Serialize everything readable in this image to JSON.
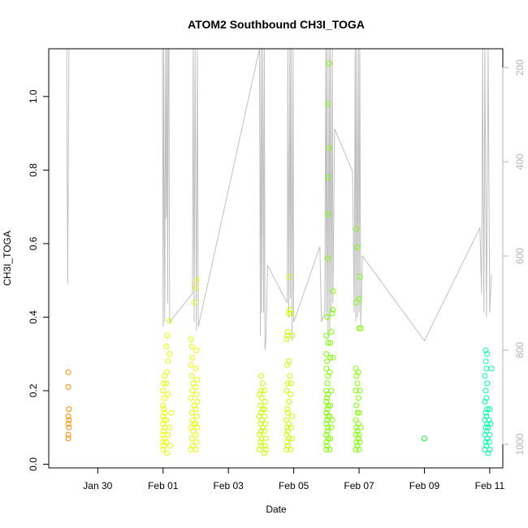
{
  "chart_data": {
    "type": "scatter",
    "title": "ATOM2 Southbound CH3I_TOGA",
    "xlabel": "Date",
    "ylabel": "CH3I_TOGA",
    "x_unit": "days since Jan 28 00:00",
    "xlim": [
      0.5,
      14.4
    ],
    "ylim": [
      -0.01,
      1.13
    ],
    "x_ticks": [
      2,
      4,
      6,
      8,
      10,
      12,
      14
    ],
    "x_tick_labels": [
      "Jan 30",
      "Feb 01",
      "Feb 03",
      "Feb 05",
      "Feb 07",
      "Feb 09",
      "Feb 11"
    ],
    "y_ticks": [
      0.0,
      0.2,
      0.4,
      0.6,
      0.8,
      1.0
    ],
    "y_tick_labels": [
      "0.0",
      "0.2",
      "0.4",
      "0.6",
      "0.8",
      "1.0"
    ],
    "y2_label": "",
    "y2_lim": [
      1050,
      160
    ],
    "y2_ticks": [
      200,
      400,
      600,
      800,
      1000
    ],
    "y2_tick_labels": [
      "200",
      "400",
      "600",
      "800",
      "1000"
    ],
    "grid": false,
    "legend": "none",
    "colors": {
      "altitude_line": "#c0c0c0",
      "point_palette": [
        "#ff8c00",
        "#e6ff00",
        "#c8ff00",
        "#7dff00",
        "#00ff2a",
        "#00ffaa"
      ],
      "axis": "#000000",
      "right_axis": "#b5b5b5"
    },
    "series": [
      {
        "points": [
          [
            1.1,
            0.07
          ],
          [
            1.1,
            0.08
          ],
          [
            1.12,
            0.1
          ],
          [
            1.1,
            0.11
          ],
          [
            1.12,
            0.12
          ],
          [
            1.1,
            0.13
          ],
          [
            1.12,
            0.15
          ],
          [
            1.1,
            0.21
          ],
          [
            1.1,
            0.25
          ]
        ]
      },
      {
        "points": [
          [
            4.0,
            0.04
          ],
          [
            4.02,
            0.05
          ],
          [
            4.0,
            0.06
          ],
          [
            4.04,
            0.07
          ],
          [
            4.0,
            0.08
          ],
          [
            4.02,
            0.09
          ],
          [
            4.05,
            0.1
          ],
          [
            4.0,
            0.11
          ],
          [
            4.03,
            0.12
          ],
          [
            4.0,
            0.13
          ],
          [
            4.05,
            0.14
          ],
          [
            4.02,
            0.15
          ],
          [
            4.0,
            0.16
          ],
          [
            4.04,
            0.18
          ],
          [
            4.0,
            0.2
          ],
          [
            4.02,
            0.22
          ],
          [
            4.05,
            0.24
          ],
          [
            4.1,
            0.06
          ],
          [
            4.12,
            0.03
          ],
          [
            4.15,
            0.08
          ],
          [
            4.1,
            0.12
          ],
          [
            4.14,
            0.19
          ],
          [
            4.1,
            0.22
          ],
          [
            4.12,
            0.25
          ],
          [
            4.15,
            0.28
          ],
          [
            4.1,
            0.32
          ],
          [
            4.13,
            0.35
          ],
          [
            4.2,
            0.39
          ],
          [
            4.22,
            0.05
          ],
          [
            4.2,
            0.1
          ],
          [
            4.25,
            0.14
          ],
          [
            4.2,
            0.3
          ],
          [
            4.85,
            0.04
          ],
          [
            4.9,
            0.05
          ],
          [
            4.88,
            0.07
          ],
          [
            4.92,
            0.09
          ],
          [
            4.85,
            0.1
          ],
          [
            4.95,
            0.11
          ],
          [
            4.9,
            0.12
          ],
          [
            4.88,
            0.14
          ],
          [
            4.95,
            0.16
          ],
          [
            4.85,
            0.18
          ],
          [
            4.9,
            0.2
          ],
          [
            4.92,
            0.22
          ],
          [
            4.88,
            0.24
          ],
          [
            4.85,
            0.27
          ],
          [
            4.9,
            0.29
          ],
          [
            4.88,
            0.32
          ],
          [
            4.85,
            0.34
          ],
          [
            4.95,
            0.44
          ],
          [
            5.0,
            0.04
          ],
          [
            5.02,
            0.06
          ],
          [
            5.0,
            0.08
          ],
          [
            5.05,
            0.1
          ],
          [
            5.0,
            0.11
          ],
          [
            5.03,
            0.13
          ],
          [
            5.0,
            0.15
          ],
          [
            5.05,
            0.17
          ],
          [
            5.02,
            0.19
          ],
          [
            5.0,
            0.21
          ],
          [
            5.04,
            0.23
          ],
          [
            5.0,
            0.26
          ],
          [
            5.02,
            0.31
          ],
          [
            5.0,
            0.48
          ],
          [
            5.02,
            0.5
          ]
        ]
      },
      {
        "points": [
          [
            6.95,
            0.04
          ],
          [
            7.0,
            0.05
          ],
          [
            6.98,
            0.06
          ],
          [
            7.02,
            0.07
          ],
          [
            6.95,
            0.08
          ],
          [
            7.0,
            0.09
          ],
          [
            7.05,
            0.1
          ],
          [
            6.98,
            0.11
          ],
          [
            7.02,
            0.12
          ],
          [
            6.95,
            0.13
          ],
          [
            7.0,
            0.14
          ],
          [
            7.05,
            0.15
          ],
          [
            6.98,
            0.16
          ],
          [
            7.02,
            0.18
          ],
          [
            6.95,
            0.19
          ],
          [
            7.0,
            0.2
          ],
          [
            7.05,
            0.22
          ],
          [
            7.0,
            0.24
          ],
          [
            7.1,
            0.03
          ],
          [
            7.12,
            0.05
          ],
          [
            7.15,
            0.07
          ],
          [
            7.1,
            0.09
          ],
          [
            7.14,
            0.11
          ],
          [
            7.1,
            0.13
          ],
          [
            7.12,
            0.15
          ],
          [
            7.15,
            0.04
          ],
          [
            7.12,
            0.17
          ],
          [
            7.1,
            0.2
          ],
          [
            7.78,
            0.04
          ],
          [
            7.82,
            0.05
          ],
          [
            7.8,
            0.06
          ],
          [
            7.85,
            0.07
          ],
          [
            7.78,
            0.08
          ],
          [
            7.82,
            0.09
          ],
          [
            7.8,
            0.1
          ],
          [
            7.85,
            0.11
          ],
          [
            7.78,
            0.12
          ],
          [
            7.82,
            0.14
          ],
          [
            7.8,
            0.15
          ],
          [
            7.85,
            0.17
          ],
          [
            7.78,
            0.2
          ],
          [
            7.82,
            0.22
          ],
          [
            7.8,
            0.27
          ],
          [
            7.85,
            0.28
          ],
          [
            7.78,
            0.34
          ],
          [
            7.8,
            0.35
          ],
          [
            7.82,
            0.36
          ],
          [
            7.85,
            0.41
          ],
          [
            7.88,
            0.42
          ],
          [
            7.86,
            0.51
          ],
          [
            7.9,
            0.04
          ],
          [
            7.95,
            0.07
          ],
          [
            7.92,
            0.1
          ],
          [
            7.95,
            0.13
          ],
          [
            7.9,
            0.19
          ],
          [
            7.92,
            0.22
          ],
          [
            7.88,
            0.24
          ],
          [
            7.95,
            0.35
          ],
          [
            7.92,
            0.41
          ]
        ]
      },
      {
        "points": [
          [
            9.0,
            0.04
          ],
          [
            9.02,
            0.05
          ],
          [
            9.0,
            0.06
          ],
          [
            9.05,
            0.07
          ],
          [
            9.0,
            0.08
          ],
          [
            9.03,
            0.09
          ],
          [
            9.05,
            0.1
          ],
          [
            9.0,
            0.11
          ],
          [
            9.02,
            0.12
          ],
          [
            9.05,
            0.13
          ],
          [
            9.0,
            0.14
          ],
          [
            9.03,
            0.15
          ],
          [
            9.05,
            0.16
          ],
          [
            9.0,
            0.17
          ],
          [
            9.02,
            0.18
          ],
          [
            9.05,
            0.19
          ],
          [
            9.0,
            0.2
          ],
          [
            9.03,
            0.22
          ],
          [
            9.05,
            0.24
          ],
          [
            9.0,
            0.26
          ],
          [
            9.02,
            0.28
          ],
          [
            9.0,
            0.3
          ],
          [
            9.05,
            0.33
          ],
          [
            9.0,
            0.35
          ],
          [
            9.02,
            0.4
          ],
          [
            9.1,
            0.04
          ],
          [
            9.12,
            0.07
          ],
          [
            9.15,
            0.1
          ],
          [
            9.1,
            0.13
          ],
          [
            9.12,
            0.16
          ],
          [
            9.15,
            0.2
          ],
          [
            9.1,
            0.25
          ],
          [
            9.12,
            0.29
          ],
          [
            9.15,
            0.36
          ],
          [
            9.18,
            0.41
          ],
          [
            9.2,
            0.42
          ],
          [
            9.2,
            0.47
          ],
          [
            9.05,
            0.56
          ],
          [
            9.05,
            0.68
          ],
          [
            9.05,
            0.78
          ],
          [
            9.08,
            0.86
          ],
          [
            9.05,
            0.98
          ],
          [
            9.08,
            1.09
          ],
          [
            9.12,
            0.33
          ],
          [
            9.18,
            0.12
          ],
          [
            9.2,
            0.29
          ],
          [
            9.9,
            0.04
          ],
          [
            9.95,
            0.05
          ],
          [
            9.92,
            0.06
          ],
          [
            9.98,
            0.07
          ],
          [
            9.9,
            0.08
          ],
          [
            9.95,
            0.09
          ],
          [
            9.92,
            0.1
          ],
          [
            9.98,
            0.11
          ],
          [
            9.9,
            0.12
          ],
          [
            9.95,
            0.14
          ],
          [
            9.92,
            0.16
          ],
          [
            9.98,
            0.18
          ],
          [
            9.9,
            0.2
          ],
          [
            9.95,
            0.22
          ],
          [
            9.92,
            0.24
          ],
          [
            9.98,
            0.25
          ],
          [
            9.9,
            0.26
          ],
          [
            10.0,
            0.04
          ],
          [
            10.02,
            0.06
          ],
          [
            10.0,
            0.08
          ],
          [
            10.05,
            0.1
          ],
          [
            10.0,
            0.14
          ],
          [
            10.02,
            0.2
          ],
          [
            10.0,
            0.37
          ],
          [
            10.05,
            0.37
          ],
          [
            9.92,
            0.44
          ],
          [
            10.0,
            0.45
          ],
          [
            9.95,
            0.59
          ],
          [
            9.92,
            0.64
          ],
          [
            10.02,
            0.51
          ]
        ]
      },
      {
        "points": [
          [
            12.0,
            0.07
          ]
        ]
      },
      {
        "points": [
          [
            13.85,
            0.04
          ],
          [
            13.9,
            0.05
          ],
          [
            13.88,
            0.06
          ],
          [
            13.92,
            0.07
          ],
          [
            13.85,
            0.08
          ],
          [
            13.9,
            0.09
          ],
          [
            13.88,
            0.1
          ],
          [
            13.92,
            0.11
          ],
          [
            13.85,
            0.12
          ],
          [
            13.9,
            0.13
          ],
          [
            13.88,
            0.14
          ],
          [
            13.92,
            0.15
          ],
          [
            13.85,
            0.17
          ],
          [
            13.9,
            0.18
          ],
          [
            13.88,
            0.2
          ],
          [
            13.92,
            0.22
          ],
          [
            13.85,
            0.24
          ],
          [
            13.9,
            0.26
          ],
          [
            13.88,
            0.28
          ],
          [
            13.92,
            0.3
          ],
          [
            13.88,
            0.31
          ],
          [
            13.95,
            0.03
          ],
          [
            14.0,
            0.04
          ],
          [
            13.98,
            0.06
          ],
          [
            14.0,
            0.08
          ],
          [
            13.95,
            0.1
          ],
          [
            14.02,
            0.11
          ],
          [
            13.98,
            0.12
          ],
          [
            14.0,
            0.15
          ],
          [
            14.05,
            0.26
          ]
        ]
      }
    ],
    "altitude_profile": [
      [
        1.05,
        160
      ],
      [
        1.08,
        660
      ],
      [
        1.12,
        160
      ],
      [
        3.98,
        160
      ],
      [
        4.0,
        750
      ],
      [
        4.02,
        160
      ],
      [
        4.05,
        740
      ],
      [
        4.08,
        160
      ],
      [
        4.1,
        520
      ],
      [
        4.12,
        160
      ],
      [
        4.14,
        700
      ],
      [
        4.16,
        160
      ],
      [
        4.18,
        160
      ],
      [
        4.2,
        740
      ],
      [
        4.9,
        680
      ],
      [
        4.92,
        160
      ],
      [
        4.95,
        740
      ],
      [
        4.98,
        160
      ],
      [
        5.02,
        760
      ],
      [
        5.05,
        160
      ],
      [
        5.08,
        750
      ],
      [
        6.95,
        160
      ],
      [
        6.98,
        770
      ],
      [
        7.0,
        160
      ],
      [
        7.02,
        720
      ],
      [
        7.05,
        160
      ],
      [
        7.08,
        720
      ],
      [
        7.1,
        160
      ],
      [
        7.12,
        800
      ],
      [
        7.15,
        780
      ],
      [
        7.2,
        620
      ],
      [
        7.8,
        700
      ],
      [
        7.82,
        160
      ],
      [
        7.85,
        730
      ],
      [
        7.88,
        160
      ],
      [
        7.9,
        690
      ],
      [
        7.92,
        160
      ],
      [
        7.95,
        780
      ],
      [
        7.98,
        160
      ],
      [
        8.0,
        740
      ],
      [
        8.8,
        580
      ],
      [
        8.85,
        740
      ],
      [
        8.95,
        720
      ],
      [
        8.98,
        160
      ],
      [
        9.0,
        730
      ],
      [
        9.02,
        160
      ],
      [
        9.05,
        780
      ],
      [
        9.08,
        160
      ],
      [
        9.1,
        760
      ],
      [
        9.12,
        160
      ],
      [
        9.15,
        720
      ],
      [
        9.18,
        160
      ],
      [
        9.2,
        700
      ],
      [
        9.25,
        330
      ],
      [
        9.8,
        420
      ],
      [
        9.85,
        720
      ],
      [
        9.88,
        160
      ],
      [
        9.9,
        740
      ],
      [
        9.92,
        160
      ],
      [
        9.95,
        730
      ],
      [
        9.98,
        160
      ],
      [
        10.0,
        720
      ],
      [
        10.02,
        160
      ],
      [
        10.05,
        750
      ],
      [
        10.1,
        600
      ],
      [
        12.0,
        780
      ],
      [
        13.7,
        540
      ],
      [
        13.75,
        680
      ],
      [
        13.78,
        160
      ],
      [
        13.82,
        720
      ],
      [
        13.85,
        160
      ],
      [
        13.9,
        730
      ],
      [
        13.95,
        160
      ],
      [
        14.0,
        720
      ],
      [
        14.05,
        640
      ]
    ]
  }
}
